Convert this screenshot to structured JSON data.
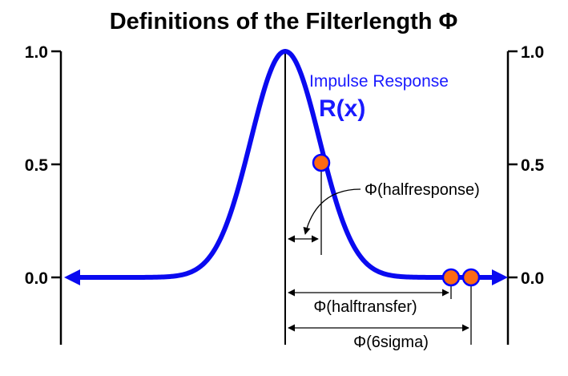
{
  "title": "Definitions of the Filterlength Φ",
  "y_ticks": [
    "1.0",
    "0.5",
    "0.0"
  ],
  "curve_label": "Impulse Response",
  "curve_symbol": "R(x)",
  "annotations": {
    "halfresponse": "Φ(halfresponse)",
    "halftransfer": "Φ(halftransfer)",
    "sixsigma": "Φ(6sigma)"
  },
  "colors": {
    "curve": "#0a0af0",
    "marker_fill": "#ff6a13",
    "marker_stroke": "#0000ff",
    "axis": "#000000"
  }
}
